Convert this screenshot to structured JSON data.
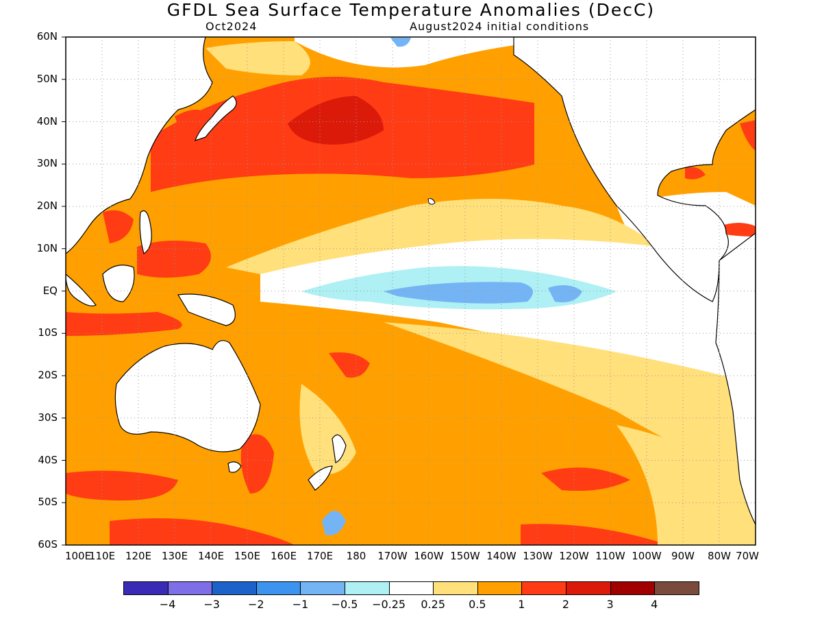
{
  "title": "GFDL Sea Surface Temperature Anomalies (DecC)",
  "subtitle_left": "Oct2024",
  "subtitle_right": "August2024 initial conditions",
  "lat_labels": [
    "60N",
    "50N",
    "40N",
    "30N",
    "20N",
    "10N",
    "EQ",
    "10S",
    "20S",
    "30S",
    "40S",
    "50S",
    "60S"
  ],
  "lon_labels": [
    "100E",
    "110E",
    "120E",
    "130E",
    "140E",
    "150E",
    "160E",
    "170E",
    "180",
    "170W",
    "160W",
    "150W",
    "140W",
    "130W",
    "120W",
    "110W",
    "100W",
    "90W",
    "80W",
    "70W"
  ],
  "colorbar": {
    "colors": [
      "#3a2bb6",
      "#7e6fe6",
      "#1d62c8",
      "#3c94ee",
      "#74b4f4",
      "#aef0f4",
      "#ffffff",
      "#ffe07a",
      "#ffa000",
      "#ff3c14",
      "#dc1a0a",
      "#a00000",
      "#7a4a3c"
    ],
    "labels": [
      "−4",
      "−3",
      "−2",
      "−1",
      "−0.5",
      "−0.25",
      "0.25",
      "0.5",
      "1",
      "2",
      "3",
      "4"
    ]
  },
  "map_colors": {
    "pale_yellow": "#ffe07a",
    "orange": "#ffa000",
    "red": "#ff3c14",
    "dark_red": "#dc1a0a",
    "light_blue": "#aef0f4",
    "blue": "#74b4f4"
  }
}
